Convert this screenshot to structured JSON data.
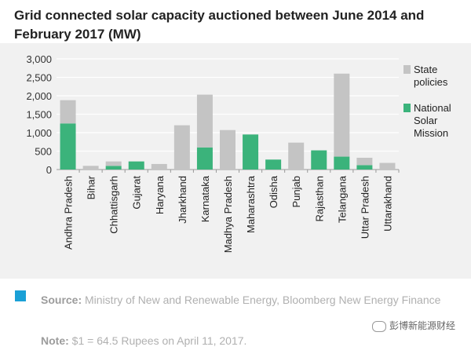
{
  "title_line1": "Grid connected solar capacity auctioned between June 2014 and",
  "title_line2": "February 2017 (MW)",
  "chart_data": {
    "type": "bar",
    "stacked": true,
    "categories": [
      "Andhra Pradesh",
      "Bihar",
      "Chhattisgarh",
      "Gujarat",
      "Haryana",
      "Jharkhand",
      "Karnataka",
      "Madhya Pradesh",
      "Maharashtra",
      "Odisha",
      "Punjab",
      "Rajasthan",
      "Telangana",
      "Uttar Pradesh",
      "Uttarakhand"
    ],
    "series": [
      {
        "name": "National Solar Mission",
        "color": "#3bb37b",
        "values": [
          1250,
          0,
          100,
          220,
          0,
          0,
          600,
          0,
          950,
          270,
          0,
          520,
          350,
          120,
          0
        ]
      },
      {
        "name": "State policies",
        "color": "#c4c4c4",
        "values": [
          630,
          100,
          120,
          0,
          150,
          1200,
          1430,
          1070,
          0,
          0,
          730,
          0,
          2250,
          200,
          180
        ]
      }
    ],
    "yticks": [
      "0",
      "500",
      "1,000",
      "1,500",
      "2,000",
      "2,500",
      "3,000"
    ],
    "ylim": [
      0,
      3000
    ]
  },
  "legend": {
    "state_label_1": "State",
    "state_label_2": "policies",
    "nsm_label_1": "National",
    "nsm_label_2": "Solar",
    "nsm_label_3": "Mission"
  },
  "footer": {
    "source_label": "Source:",
    "source_text": " Ministry of New and Renewable Energy, Bloomberg New Energy Finance",
    "note_label": "Note:",
    "note_text": " $1 = 64.5 Rupees on April 11, 2017.",
    "watermark": "彭博新能源财经",
    "accent_color": "#1aa0d6"
  }
}
